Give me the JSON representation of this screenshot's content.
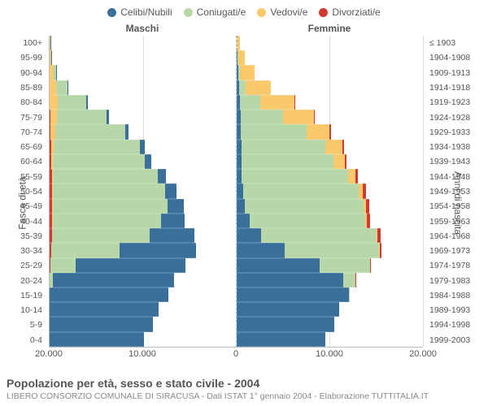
{
  "legend": [
    {
      "label": "Celibi/Nubili",
      "color": "#3a6f9a"
    },
    {
      "label": "Coniugati/e",
      "color": "#b7d7a8"
    },
    {
      "label": "Vedovi/e",
      "color": "#f9c96b"
    },
    {
      "label": "Divorziati/e",
      "color": "#d33a2f"
    }
  ],
  "side_titles": {
    "left": "Maschi",
    "right": "Femmine"
  },
  "y_title_left": "Fasce di età",
  "y_title_right": "Anni di nascita",
  "chart": {
    "type": "population-pyramid",
    "x_max": 20000,
    "x_ticks": [
      -20000,
      -10000,
      0,
      10000,
      20000
    ],
    "x_tick_labels": [
      "20.000",
      "10.000",
      "0",
      "10.000",
      "20.000"
    ],
    "background_color": "#ffffff",
    "grid_color": "#dddddd",
    "age_labels": [
      "100+",
      "95-99",
      "90-94",
      "85-89",
      "80-84",
      "75-79",
      "70-74",
      "65-69",
      "60-64",
      "55-59",
      "50-54",
      "45-49",
      "40-44",
      "35-39",
      "30-34",
      "25-29",
      "20-24",
      "15-19",
      "10-14",
      "5-9",
      "0-4"
    ],
    "birth_labels": [
      "≤ 1903",
      "1904-1908",
      "1909-1913",
      "1914-1918",
      "1919-1923",
      "1924-1928",
      "1929-1933",
      "1934-1938",
      "1939-1943",
      "1944-1948",
      "1949-1953",
      "1954-1958",
      "1959-1963",
      "1964-1968",
      "1969-1973",
      "1974-1978",
      "1979-1983",
      "1984-1988",
      "1989-1993",
      "1994-1998",
      "1999-2003"
    ],
    "rows": [
      {
        "m": {
          "single": 20,
          "married": 0,
          "widowed": 60,
          "divorced": 0
        },
        "f": {
          "single": 80,
          "married": 0,
          "widowed": 320,
          "divorced": 0
        }
      },
      {
        "m": {
          "single": 20,
          "married": 30,
          "widowed": 150,
          "divorced": 0
        },
        "f": {
          "single": 100,
          "married": 20,
          "widowed": 780,
          "divorced": 0
        }
      },
      {
        "m": {
          "single": 60,
          "married": 300,
          "widowed": 400,
          "divorced": 0
        },
        "f": {
          "single": 200,
          "married": 150,
          "widowed": 1650,
          "divorced": 0
        }
      },
      {
        "m": {
          "single": 100,
          "married": 1200,
          "widowed": 700,
          "divorced": 0
        },
        "f": {
          "single": 280,
          "married": 700,
          "widowed": 2700,
          "divorced": 0
        }
      },
      {
        "m": {
          "single": 200,
          "married": 3000,
          "widowed": 850,
          "divorced": 30
        },
        "f": {
          "single": 400,
          "married": 2200,
          "widowed": 3600,
          "divorced": 40
        }
      },
      {
        "m": {
          "single": 300,
          "married": 5300,
          "widowed": 700,
          "divorced": 60
        },
        "f": {
          "single": 500,
          "married": 4500,
          "widowed": 3300,
          "divorced": 80
        }
      },
      {
        "m": {
          "single": 400,
          "married": 7500,
          "widowed": 480,
          "divorced": 100
        },
        "f": {
          "single": 500,
          "married": 7000,
          "widowed": 2500,
          "divorced": 120
        }
      },
      {
        "m": {
          "single": 550,
          "married": 9200,
          "widowed": 300,
          "divorced": 150
        },
        "f": {
          "single": 550,
          "married": 9000,
          "widowed": 1850,
          "divorced": 180
        }
      },
      {
        "m": {
          "single": 700,
          "married": 9800,
          "widowed": 180,
          "divorced": 200
        },
        "f": {
          "single": 550,
          "married": 9900,
          "widowed": 1150,
          "divorced": 220
        }
      },
      {
        "m": {
          "single": 900,
          "married": 11200,
          "widowed": 120,
          "divorced": 250
        },
        "f": {
          "single": 600,
          "married": 11400,
          "widowed": 750,
          "divorced": 280
        }
      },
      {
        "m": {
          "single": 1200,
          "married": 12000,
          "widowed": 80,
          "divorced": 280
        },
        "f": {
          "single": 700,
          "married": 12400,
          "widowed": 450,
          "divorced": 320
        }
      },
      {
        "m": {
          "single": 1700,
          "married": 12300,
          "widowed": 50,
          "divorced": 300
        },
        "f": {
          "single": 900,
          "married": 12700,
          "widowed": 280,
          "divorced": 350
        }
      },
      {
        "m": {
          "single": 2600,
          "married": 11600,
          "widowed": 30,
          "divorced": 280
        },
        "f": {
          "single": 1400,
          "married": 12400,
          "widowed": 180,
          "divorced": 360
        }
      },
      {
        "m": {
          "single": 4800,
          "married": 10500,
          "widowed": 20,
          "divorced": 220
        },
        "f": {
          "single": 2700,
          "married": 12300,
          "widowed": 110,
          "divorced": 320
        }
      },
      {
        "m": {
          "single": 8200,
          "married": 7300,
          "widowed": 15,
          "divorced": 140
        },
        "f": {
          "single": 5200,
          "married": 10100,
          "widowed": 60,
          "divorced": 220
        }
      },
      {
        "m": {
          "single": 11800,
          "married": 2700,
          "widowed": 0,
          "divorced": 60
        },
        "f": {
          "single": 8900,
          "married": 5400,
          "widowed": 20,
          "divorced": 110
        }
      },
      {
        "m": {
          "single": 13000,
          "married": 350,
          "widowed": 0,
          "divorced": 10
        },
        "f": {
          "single": 11500,
          "married": 1300,
          "widowed": 0,
          "divorced": 20
        }
      },
      {
        "m": {
          "single": 12700,
          "married": 10,
          "widowed": 0,
          "divorced": 0
        },
        "f": {
          "single": 12100,
          "married": 80,
          "widowed": 0,
          "divorced": 0
        }
      },
      {
        "m": {
          "single": 11700,
          "married": 0,
          "widowed": 0,
          "divorced": 0
        },
        "f": {
          "single": 11000,
          "married": 0,
          "widowed": 0,
          "divorced": 0
        }
      },
      {
        "m": {
          "single": 11100,
          "married": 0,
          "widowed": 0,
          "divorced": 0
        },
        "f": {
          "single": 10500,
          "married": 0,
          "widowed": 0,
          "divorced": 0
        }
      },
      {
        "m": {
          "single": 10100,
          "married": 0,
          "widowed": 0,
          "divorced": 0
        },
        "f": {
          "single": 9500,
          "married": 0,
          "widowed": 0,
          "divorced": 0
        }
      }
    ]
  },
  "footer": {
    "title": "Popolazione per età, sesso e stato civile - 2004",
    "subtitle": "LIBERO CONSORZIO COMUNALE DI SIRACUSA - Dati ISTAT 1° gennaio 2004 - Elaborazione TUTTITALIA.IT"
  }
}
